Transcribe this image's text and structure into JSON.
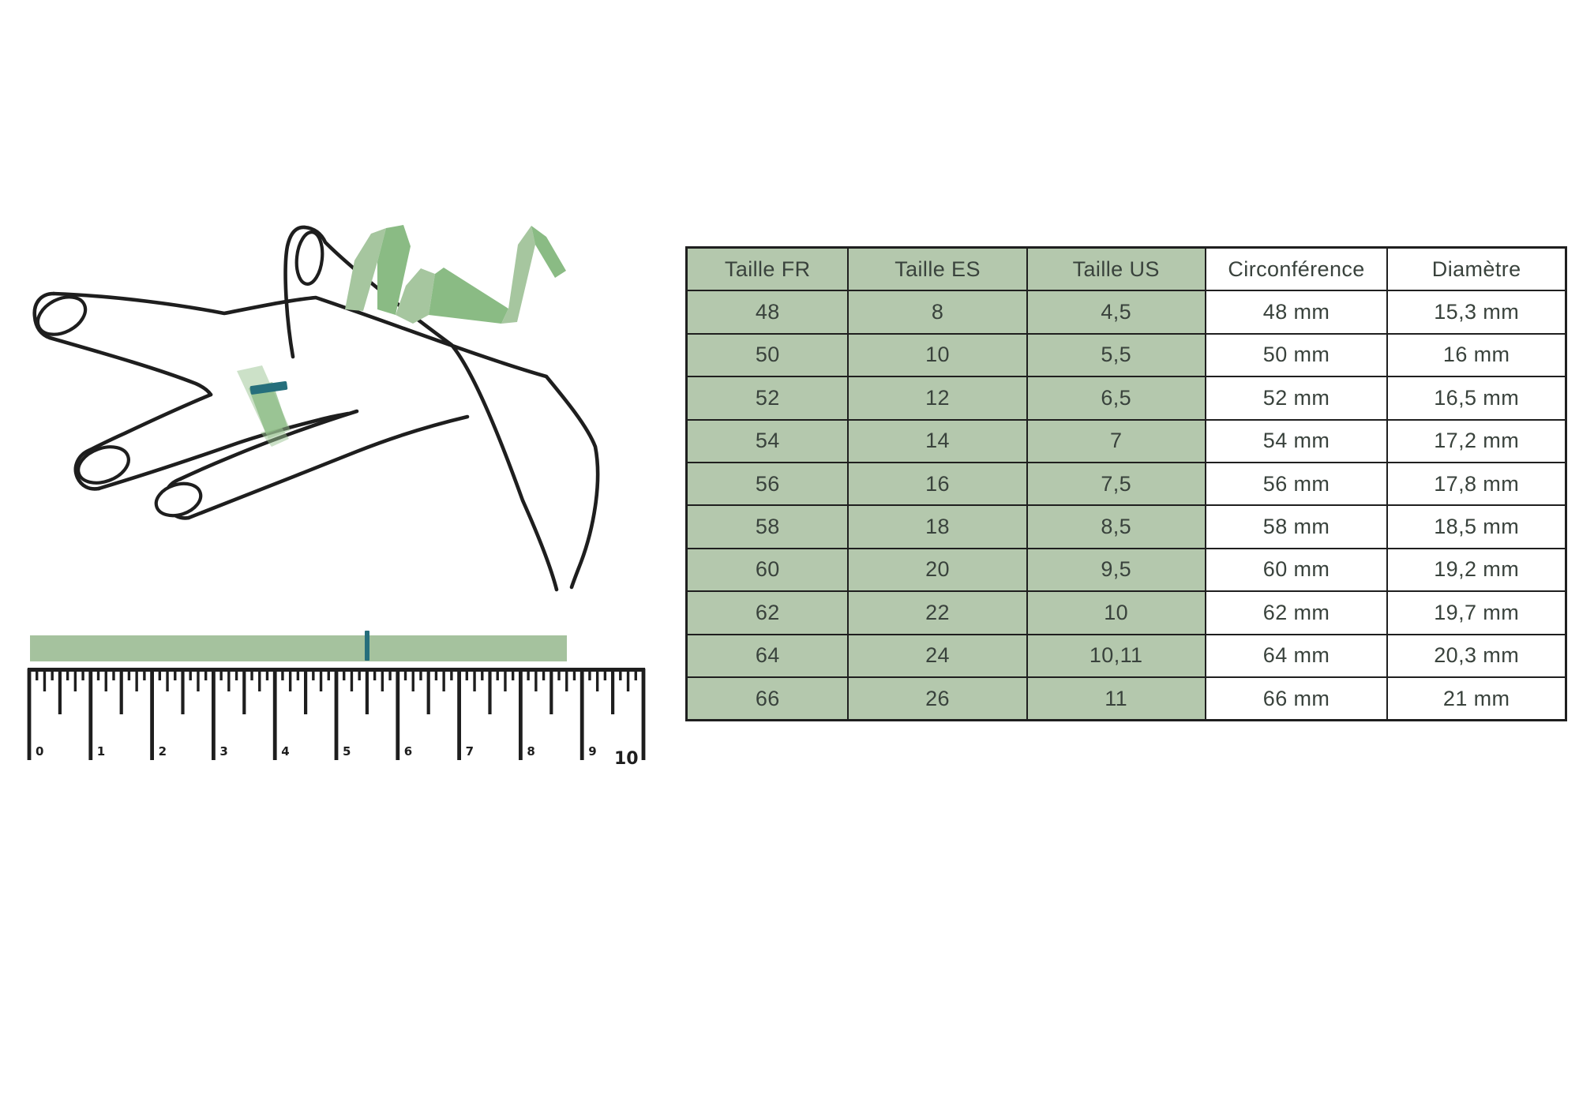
{
  "table": {
    "headers": [
      "Taille FR",
      "Taille ES",
      "Taille US",
      "Circonférence",
      "Diamètre"
    ],
    "rows": [
      [
        "48",
        "8",
        "4,5",
        "48 mm",
        "15,3 mm"
      ],
      [
        "50",
        "10",
        "5,5",
        "50 mm",
        "16 mm"
      ],
      [
        "52",
        "12",
        "6,5",
        "52 mm",
        "16,5 mm"
      ],
      [
        "54",
        "14",
        "7",
        "54 mm",
        "17,2 mm"
      ],
      [
        "56",
        "16",
        "7,5",
        "56 mm",
        "17,8 mm"
      ],
      [
        "58",
        "18",
        "8,5",
        "58 mm",
        "18,5 mm"
      ],
      [
        "60",
        "20",
        "9,5",
        "60 mm",
        "19,2 mm"
      ],
      [
        "62",
        "22",
        "10",
        "62 mm",
        "19,7 mm"
      ],
      [
        "64",
        "24",
        "10,11",
        "64 mm",
        "20,3 mm"
      ],
      [
        "66",
        "26",
        "11",
        "66 mm",
        "21 mm"
      ]
    ]
  },
  "ruler": {
    "labels": [
      "0",
      "1",
      "2",
      "3",
      "4",
      "5",
      "6",
      "7",
      "8",
      "9",
      "10"
    ]
  },
  "colors": {
    "table_green": "#b4c8ad",
    "strip_green": "#a5c29e",
    "ribbon_light": "#a6c69f",
    "ribbon_dark": "#8abb84",
    "marker_teal": "#266f7c",
    "line_black": "#1e1e1e",
    "text": "#39423c"
  }
}
